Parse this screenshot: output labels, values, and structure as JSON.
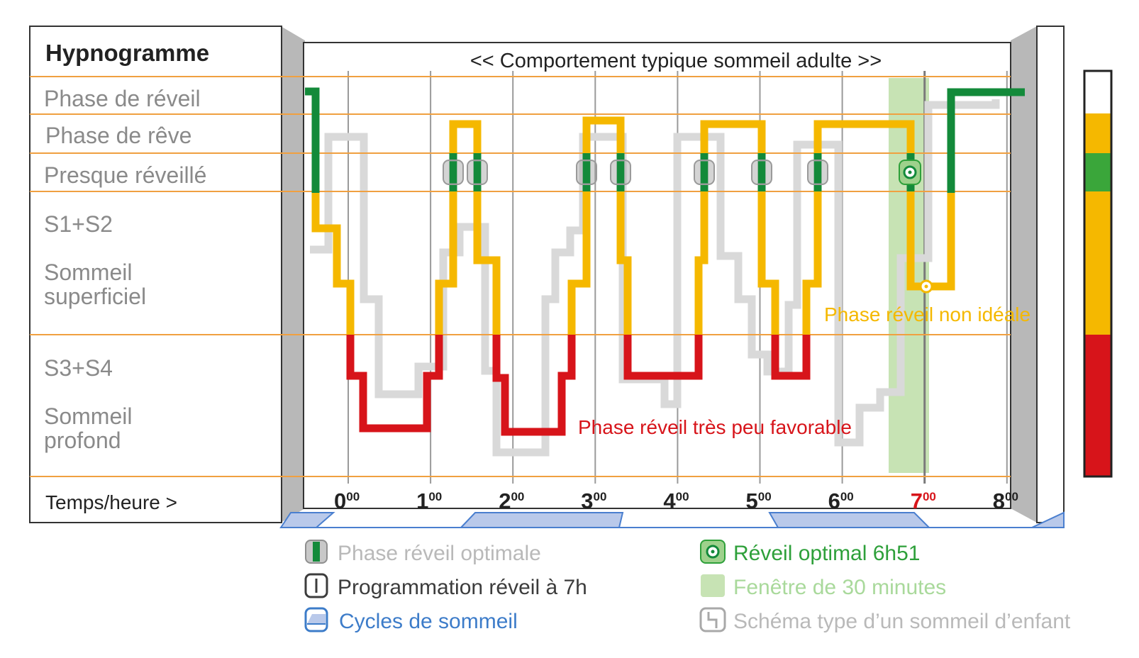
{
  "title": "<< Comportement typique sommeil adulte >>",
  "left_panel": {
    "header": "Hypnogramme",
    "rows": [
      {
        "key": "wake",
        "lines": [
          "Phase de réveil"
        ]
      },
      {
        "key": "rem",
        "lines": [
          "Phase de rêve"
        ]
      },
      {
        "key": "near_wake",
        "lines": [
          "Presque réveillé"
        ]
      },
      {
        "key": "light",
        "lines": [
          "S1+S2",
          "Sommeil",
          "superficiel"
        ]
      },
      {
        "key": "deep",
        "lines": [
          "S3+S4",
          "Sommeil",
          "profond"
        ]
      }
    ],
    "time_label": "Temps/heure >"
  },
  "time_ticks": [
    {
      "hour": "0",
      "sup": "00",
      "highlight": false
    },
    {
      "hour": "1",
      "sup": "00",
      "highlight": false
    },
    {
      "hour": "2",
      "sup": "00",
      "highlight": false
    },
    {
      "hour": "3",
      "sup": "00",
      "highlight": false
    },
    {
      "hour": "4",
      "sup": "00",
      "highlight": false
    },
    {
      "hour": "5",
      "sup": "00",
      "highlight": false
    },
    {
      "hour": "6",
      "sup": "00",
      "highlight": false
    },
    {
      "hour": "7",
      "sup": "00",
      "highlight": true
    },
    {
      "hour": "8",
      "sup": "00",
      "highlight": false
    }
  ],
  "annotations": {
    "non_ideal": "Phase réveil non idéale",
    "unfavorable": "Phase réveil très peu favorable"
  },
  "legend": [
    {
      "key": "optimal_phase",
      "label": "Phase réveil optimale",
      "color": "#b9b9b9",
      "icon": "green-bar-icon"
    },
    {
      "key": "alarm",
      "label": "Programmation réveil à 7h",
      "color": "#3c3c3c",
      "icon": "alarm-line-icon"
    },
    {
      "key": "cycles",
      "label": "Cycles de sommeil",
      "color": "#3d7cc9",
      "icon": "cycle-trapezoid-icon"
    },
    {
      "key": "optimal_wake",
      "label": "Réveil optimal 6h51",
      "color": "#2ea03a",
      "icon": "target-icon"
    },
    {
      "key": "window",
      "label": "Fenêtre de 30 minutes",
      "color": "#a9d99b",
      "icon": "green-square-icon"
    },
    {
      "key": "child",
      "label": "Schéma type d’un sommeil d’enfant",
      "color": "#b9b9b9",
      "icon": "step-line-icon"
    }
  ],
  "colors": {
    "orange_line": "#f0a040",
    "yellow": "#f5b800",
    "red": "#d7141a",
    "green": "#138a3a",
    "gray": "#d9d9d9",
    "window": "#c7e3b4",
    "cycle_blue": "#b9c9ea"
  }
}
